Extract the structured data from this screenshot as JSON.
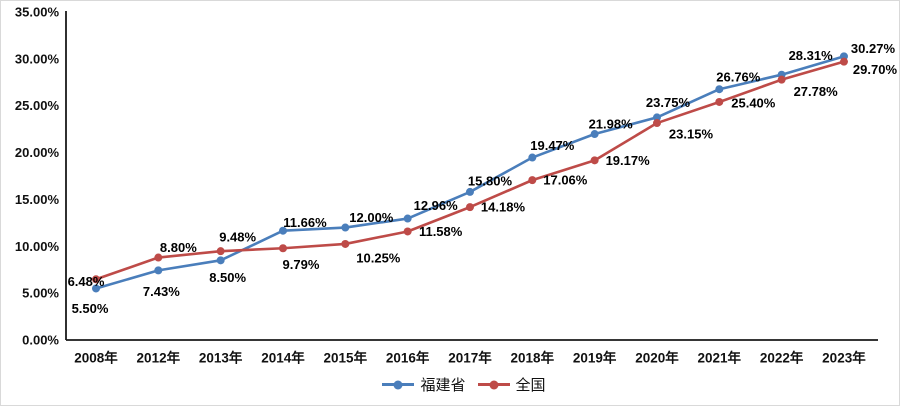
{
  "chart_data": {
    "type": "line",
    "categories": [
      "2008年",
      "2012年",
      "2013年",
      "2014年",
      "2015年",
      "2016年",
      "2017年",
      "2018年",
      "2019年",
      "2020年",
      "2021年",
      "2022年",
      "2023年"
    ],
    "series": [
      {
        "name": "福建省",
        "color": "#4A7EBB",
        "values": [
          5.5,
          7.43,
          8.5,
          11.66,
          12.0,
          12.96,
          15.8,
          19.47,
          21.98,
          23.75,
          26.76,
          28.31,
          30.27
        ],
        "labels": [
          "5.50%",
          "7.43%",
          "8.50%",
          "11.66%",
          "12.00%",
          "12.96%",
          "15.80%",
          "19.47%",
          "21.98%",
          "23.75%",
          "26.76%",
          "28.31%",
          "30.27%"
        ]
      },
      {
        "name": "全国",
        "color": "#BE4B48",
        "values": [
          6.48,
          8.8,
          9.48,
          9.79,
          10.25,
          11.58,
          14.18,
          17.06,
          19.17,
          23.15,
          25.4,
          27.78,
          29.7
        ],
        "labels": [
          "6.48%",
          "8.80%",
          "9.48%",
          "9.79%",
          "10.25%",
          "11.58%",
          "14.18%",
          "17.06%",
          "19.17%",
          "23.15%",
          "25.40%",
          "27.78%",
          "29.70%"
        ]
      }
    ],
    "y_axis": {
      "min": 0,
      "max": 35,
      "step": 5,
      "tick_labels": [
        "0.00%",
        "5.00%",
        "10.00%",
        "15.00%",
        "20.00%",
        "25.00%",
        "30.00%",
        "35.00%"
      ]
    },
    "grid": false,
    "data_labels_shown": true,
    "legend_position": "bottom",
    "label_offsets": [
      [
        [
          -6,
          20
        ],
        [
          3,
          21
        ],
        [
          7,
          17
        ],
        [
          22,
          -8
        ],
        [
          26,
          -10
        ],
        [
          28,
          -13
        ],
        [
          20,
          -11
        ],
        [
          20,
          -12
        ],
        [
          16,
          -10
        ],
        [
          11,
          -15
        ],
        [
          19,
          -12
        ],
        [
          29,
          -19
        ],
        [
          29,
          -8
        ]
      ],
      [
        [
          -10,
          2
        ],
        [
          20,
          -10
        ],
        [
          17,
          -14
        ],
        [
          18,
          16
        ],
        [
          33,
          14
        ],
        [
          33,
          0
        ],
        [
          33,
          0
        ],
        [
          33,
          0
        ],
        [
          33,
          0
        ],
        [
          34,
          11
        ],
        [
          34,
          1
        ],
        [
          34,
          12
        ],
        [
          31,
          8
        ]
      ]
    ]
  }
}
